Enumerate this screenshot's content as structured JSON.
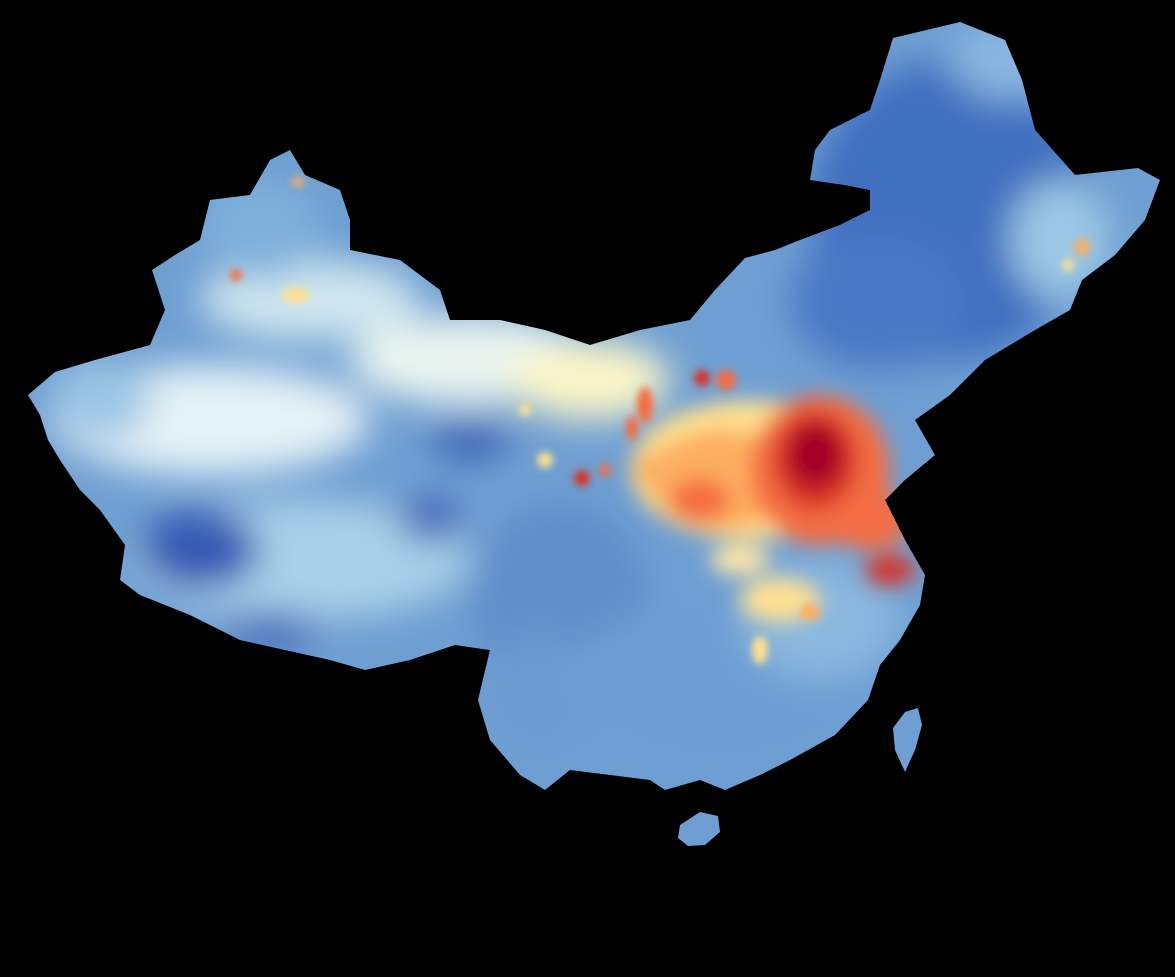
{
  "map": {
    "region": "China",
    "style": "heatmap",
    "background_color": "#000000",
    "colormap": [
      "#313695",
      "#4575b4",
      "#74add1",
      "#abd9e9",
      "#e0f3f8",
      "#ffffbf",
      "#fee090",
      "#fdae61",
      "#f46d43",
      "#d73027",
      "#a50026"
    ],
    "legend": null,
    "labels": []
  }
}
